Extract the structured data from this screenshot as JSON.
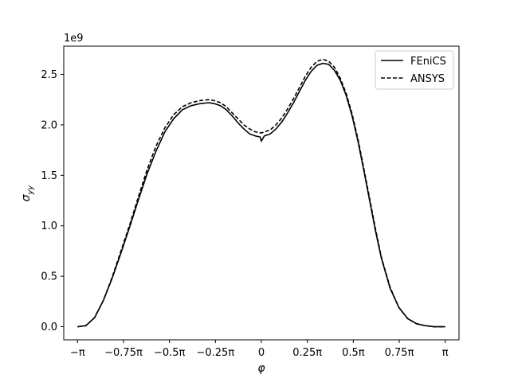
{
  "chart_data": {
    "type": "line",
    "title": "",
    "xlabel": "φ",
    "ylabel": "σ",
    "ylabel_subscript": "yy",
    "y_offset_label": "1e9",
    "xlim": [
      -3.3772,
      3.3772
    ],
    "ylim": [
      -130000000.0,
      2780000000.0
    ],
    "x_ticks": [
      {
        "value": -3.14159,
        "label": "−π"
      },
      {
        "value": -2.35619,
        "label": "−0.75π"
      },
      {
        "value": -1.5708,
        "label": "−0.5π"
      },
      {
        "value": -0.7854,
        "label": "−0.25π"
      },
      {
        "value": 0,
        "label": "0"
      },
      {
        "value": 0.7854,
        "label": "0.25π"
      },
      {
        "value": 1.5708,
        "label": "0.5π"
      },
      {
        "value": 2.35619,
        "label": "0.75π"
      },
      {
        "value": 3.14159,
        "label": "π"
      }
    ],
    "y_ticks": [
      {
        "value": 0.0,
        "label": "0.0"
      },
      {
        "value": 500000000.0,
        "label": "0.5"
      },
      {
        "value": 1000000000.0,
        "label": "1.0"
      },
      {
        "value": 1500000000.0,
        "label": "1.5"
      },
      {
        "value": 2000000000.0,
        "label": "2.0"
      },
      {
        "value": 2500000000.0,
        "label": "2.5"
      }
    ],
    "grid": false,
    "legend_position": "upper right",
    "series": [
      {
        "name": "FEniCS",
        "style": "solid",
        "color": "#000000",
        "x": [
          -3.1416,
          -3.0,
          -2.85,
          -2.7,
          -2.55,
          -2.4,
          -2.25,
          -2.1,
          -1.95,
          -1.8,
          -1.65,
          -1.5,
          -1.35,
          -1.2,
          -1.05,
          -0.9,
          -0.8,
          -0.7,
          -0.6,
          -0.5,
          -0.4,
          -0.3,
          -0.2,
          -0.1,
          -0.02,
          0.0,
          0.05,
          0.15,
          0.25,
          0.35,
          0.45,
          0.55,
          0.65,
          0.75,
          0.85,
          0.95,
          1.05,
          1.15,
          1.25,
          1.35,
          1.45,
          1.55,
          1.65,
          1.75,
          1.85,
          1.95,
          2.05,
          2.2,
          2.35,
          2.5,
          2.65,
          2.8,
          2.95,
          3.05,
          3.1416
        ],
        "y": [
          0.0,
          10000000.0,
          90000000.0,
          260000000.0,
          480000000.0,
          730000000.0,
          990000000.0,
          1260000000.0,
          1520000000.0,
          1740000000.0,
          1930000000.0,
          2060000000.0,
          2150000000.0,
          2190000000.0,
          2210000000.0,
          2220000000.0,
          2210000000.0,
          2190000000.0,
          2150000000.0,
          2090000000.0,
          2020000000.0,
          1960000000.0,
          1910000000.0,
          1890000000.0,
          1880000000.0,
          1840000000.0,
          1890000000.0,
          1910000000.0,
          1960000000.0,
          2030000000.0,
          2120000000.0,
          2220000000.0,
          2330000000.0,
          2440000000.0,
          2530000000.0,
          2590000000.0,
          2610000000.0,
          2600000000.0,
          2540000000.0,
          2440000000.0,
          2290000000.0,
          2090000000.0,
          1840000000.0,
          1550000000.0,
          1250000000.0,
          950000000.0,
          680000000.0,
          380000000.0,
          190000000.0,
          80000000.0,
          30000000.0,
          10000000.0,
          0.0,
          0.0,
          0.0
        ]
      },
      {
        "name": "ANSYS",
        "style": "dashed",
        "color": "#000000",
        "x": [
          -3.1416,
          -3.0,
          -2.85,
          -2.7,
          -2.55,
          -2.4,
          -2.25,
          -2.1,
          -1.95,
          -1.8,
          -1.65,
          -1.5,
          -1.35,
          -1.2,
          -1.05,
          -0.9,
          -0.8,
          -0.7,
          -0.6,
          -0.5,
          -0.4,
          -0.3,
          -0.2,
          -0.1,
          0.0,
          0.05,
          0.15,
          0.25,
          0.35,
          0.45,
          0.55,
          0.65,
          0.75,
          0.85,
          0.95,
          1.05,
          1.15,
          1.25,
          1.35,
          1.45,
          1.55,
          1.65,
          1.75,
          1.85,
          1.95,
          2.05,
          2.2,
          2.35,
          2.5,
          2.65,
          2.8,
          2.95,
          3.05,
          3.1416
        ],
        "y": [
          0.0,
          10000000.0,
          90000000.0,
          260000000.0,
          490000000.0,
          750000000.0,
          1010000000.0,
          1290000000.0,
          1560000000.0,
          1790000000.0,
          1970000000.0,
          2100000000.0,
          2180000000.0,
          2220000000.0,
          2240000000.0,
          2250000000.0,
          2240000000.0,
          2220000000.0,
          2180000000.0,
          2120000000.0,
          2060000000.0,
          2000000000.0,
          1960000000.0,
          1930000000.0,
          1920000000.0,
          1930000000.0,
          1950000000.0,
          2000000000.0,
          2070000000.0,
          2160000000.0,
          2260000000.0,
          2370000000.0,
          2480000000.0,
          2570000000.0,
          2630000000.0,
          2650000000.0,
          2630000000.0,
          2570000000.0,
          2460000000.0,
          2310000000.0,
          2110000000.0,
          1860000000.0,
          1570000000.0,
          1270000000.0,
          970000000.0,
          690000000.0,
          390000000.0,
          190000000.0,
          80000000.0,
          30000000.0,
          10000000.0,
          0.0,
          0.0,
          0.0
        ]
      }
    ]
  }
}
